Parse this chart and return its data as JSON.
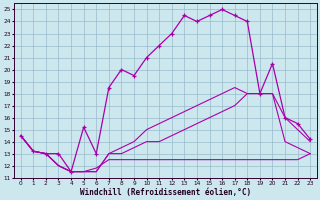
{
  "xlabel": "Windchill (Refroidissement éolien,°C)",
  "bg_color": "#cce8ee",
  "line_color": "#aa00aa",
  "grid_color": "#99bbcc",
  "xlim": [
    -0.5,
    23.5
  ],
  "ylim": [
    11,
    25.5
  ],
  "xticks": [
    0,
    1,
    2,
    3,
    4,
    5,
    6,
    7,
    8,
    9,
    10,
    11,
    12,
    13,
    14,
    15,
    16,
    17,
    18,
    19,
    20,
    21,
    22,
    23
  ],
  "yticks": [
    11,
    12,
    13,
    14,
    15,
    16,
    17,
    18,
    19,
    20,
    21,
    22,
    23,
    24,
    25
  ],
  "hours": [
    0,
    1,
    2,
    3,
    4,
    5,
    6,
    7,
    8,
    9,
    10,
    11,
    12,
    13,
    14,
    15,
    16,
    17,
    18,
    19,
    20,
    21,
    22,
    23
  ],
  "line_main": [
    14.5,
    13.2,
    13.0,
    13.0,
    11.5,
    15.2,
    13.0,
    18.5,
    20.0,
    19.5,
    21.0,
    22.0,
    23.0,
    24.5,
    24.0,
    24.5,
    25.0,
    24.5,
    24.0,
    18.0,
    20.5,
    16.0,
    15.5,
    14.2
  ],
  "line_diag1": [
    14.5,
    13.2,
    13.0,
    12.0,
    11.5,
    11.5,
    11.5,
    13.0,
    13.0,
    13.5,
    14.0,
    14.0,
    14.5,
    15.0,
    15.5,
    16.0,
    16.5,
    17.0,
    18.0,
    18.0,
    18.0,
    14.0,
    13.5,
    13.0
  ],
  "line_diag2": [
    14.5,
    13.2,
    13.0,
    12.0,
    11.5,
    11.5,
    11.5,
    13.0,
    13.5,
    14.0,
    15.0,
    15.5,
    16.0,
    16.5,
    17.0,
    17.5,
    18.0,
    18.5,
    18.0,
    18.0,
    18.0,
    16.0,
    15.0,
    14.0
  ],
  "line_diag3": [
    14.5,
    13.2,
    13.0,
    12.0,
    11.5,
    11.5,
    11.8,
    12.5,
    12.5,
    12.5,
    12.5,
    12.5,
    12.5,
    12.5,
    12.5,
    12.5,
    12.5,
    12.5,
    12.5,
    12.5,
    12.5,
    12.5,
    12.5,
    13.0
  ]
}
